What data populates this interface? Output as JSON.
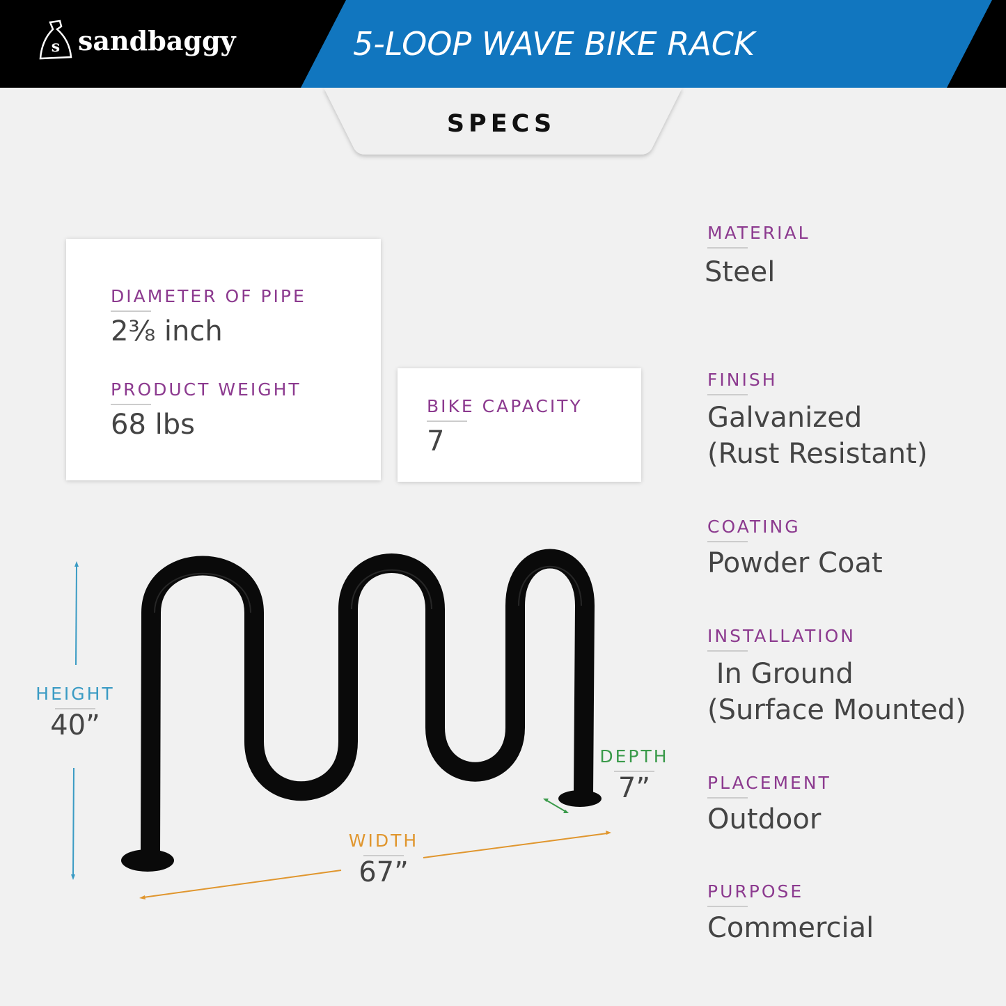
{
  "header": {
    "brand": "sandbaggy",
    "title": "5-LOOP WAVE BIKE RACK",
    "tab": "SPECS",
    "colors": {
      "bar": "#000000",
      "accent": "#1176bf"
    }
  },
  "cards": [
    {
      "items": [
        {
          "label": "DIAMETER OF PIPE",
          "value": "2⅜ inch"
        },
        {
          "label": "PRODUCT WEIGHT",
          "value": "68 lbs"
        }
      ]
    },
    {
      "items": [
        {
          "label": "BIKE CAPACITY",
          "value": "7"
        }
      ]
    }
  ],
  "dimensions": {
    "height": {
      "label": "HEIGHT",
      "value": "40”",
      "color": "#3a9bc4"
    },
    "width": {
      "label": "WIDTH",
      "value": "67”",
      "color": "#e0962e"
    },
    "depth": {
      "label": "DEPTH",
      "value": "7”",
      "color": "#3a9a4a"
    }
  },
  "specs": [
    {
      "label": "MATERIAL",
      "value": "Steel"
    },
    {
      "label": "FINISH",
      "value": "Galvanized",
      "value2": "(Rust Resistant)"
    },
    {
      "label": "COATING",
      "value": "Powder Coat"
    },
    {
      "label": "INSTALLATION",
      "value": " In Ground",
      "value2": "(Surface Mounted)"
    },
    {
      "label": "PLACEMENT",
      "value": "Outdoor"
    },
    {
      "label": "PURPOSE",
      "value": "Commercial"
    }
  ],
  "label_color": "#8c3a8f"
}
